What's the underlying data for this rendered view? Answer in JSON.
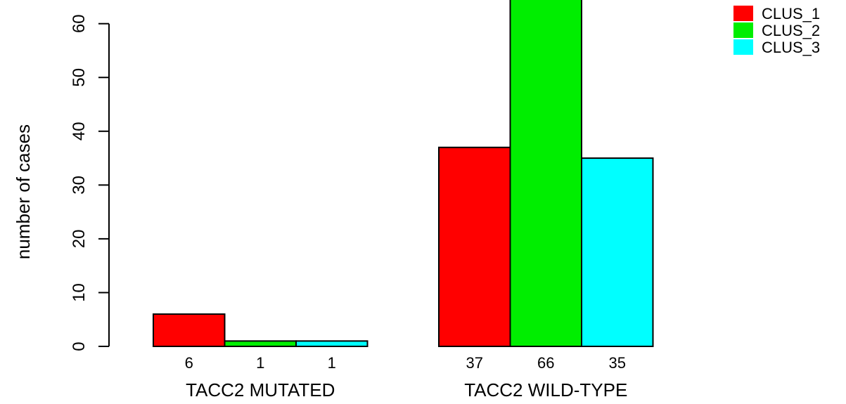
{
  "chart_data": {
    "type": "bar",
    "categories": [
      "TACC2 MUTATED",
      "TACC2 WILD-TYPE"
    ],
    "series": [
      {
        "name": "CLUS_1",
        "color": "#ff0000",
        "values": [
          6,
          37
        ]
      },
      {
        "name": "CLUS_2",
        "color": "#00ee00",
        "values": [
          1,
          66
        ]
      },
      {
        "name": "CLUS_3",
        "color": "#00ffff",
        "values": [
          1,
          35
        ]
      }
    ],
    "value_labels": [
      [
        "6",
        "1",
        "1"
      ],
      [
        "37",
        "66",
        "35"
      ]
    ],
    "title": "",
    "xlabel": "",
    "ylabel": "number of cases",
    "yticks": [
      0,
      10,
      20,
      30,
      40,
      50,
      60
    ],
    "ylim": [
      0,
      66
    ],
    "grid": false,
    "legend_position": "top-right"
  }
}
